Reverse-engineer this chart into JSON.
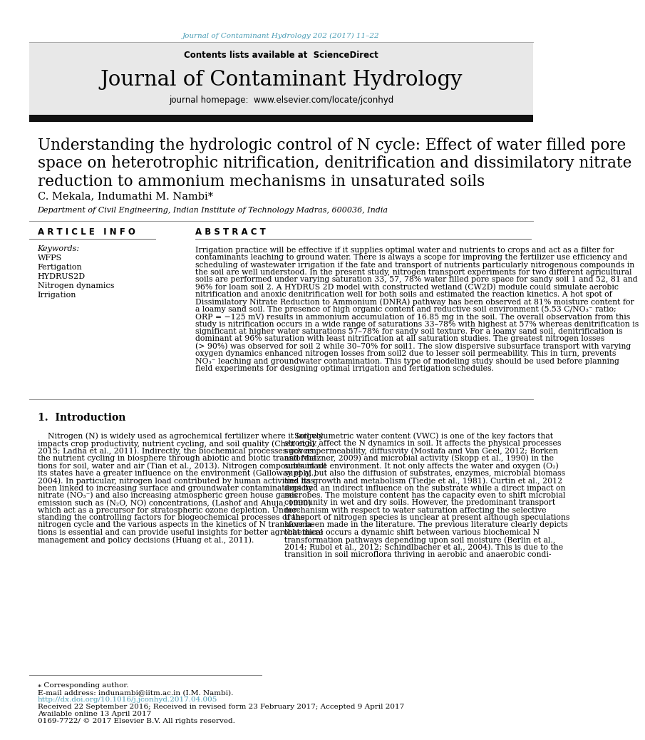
{
  "journal_ref": "Journal of Contaminant Hydrology 202 (2017) 11–22",
  "journal_ref_color": "#4a9db5",
  "journal_title": "Journal of Contaminant Hydrology",
  "journal_homepage_url": "www.elsevier.com/locate/jconhyd",
  "journal_homepage_color": "#4a9db5",
  "paper_title_lines": [
    "Understanding the hydrologic control of N cycle: Effect of water filled pore",
    "space on heterotrophic nitrification, denitrification and dissimilatory nitrate",
    "reduction to ammonium mechanisms in unsaturated soils"
  ],
  "authors": "C. Mekala, Indumathi M. Nambi*",
  "affiliation": "Department of Civil Engineering, Indian Institute of Technology Madras, 600036, India",
  "article_info_header": "A R T I C L E   I N F O",
  "abstract_header": "A B S T R A C T",
  "keywords_label": "Keywords:",
  "keywords": [
    "WFPS",
    "Fertigation",
    "HYDRUS2D",
    "Nitrogen dynamics",
    "Irrigation"
  ],
  "abstract_lines": [
    "Irrigation practice will be effective if it supplies optimal water and nutrients to crops and act as a filter for",
    "contaminants leaching to ground water. There is always a scope for improving the fertilizer use efficiency and",
    "scheduling of wastewater irrigation if the fate and transport of nutrients particularly nitrogenous compounds in",
    "the soil are well understood. In the present study, nitrogen transport experiments for two different agricultural",
    "soils are performed under varying saturation 33, 57, 78% water filled pore space for sandy soil 1 and 52, 81 and",
    "96% for loam soil 2. A HYDRUS 2D model with constructed wetland (CW2D) module could simulate aerobic",
    "nitrification and anoxic denitrification well for both soils and estimated the reaction kinetics. A hot spot of",
    "Dissimilatory Nitrate Reduction to Ammonium (DNRA) pathway has been observed at 81% moisture content for",
    "a loamy sand soil. The presence of high organic content and reductive soil environment (5.53 C/NO₃⁻ ratio;",
    "ORP = −125 mV) results in ammonium accumulation of 16.85 mg in the soil. The overall observation from this",
    "study is nitrification occurs in a wide range of saturations 33–78% with highest at 57% whereas denitrification is",
    "significant at higher water saturations 57–78% for sandy soil texture. For a loamy sand soil, denitrification is",
    "dominant at 96% saturation with least nitrification at all saturation studies. The greatest nitrogen losses",
    "(> 90%) was observed for soil 2 while 30–70% for soil1. The slow dispersive subsurface transport with varying",
    "oxygen dynamics enhanced nitrogen losses from soil2 due to lesser soil permeability. This in turn, prevents",
    "NO₃⁻ leaching and groundwater contamination. This type of modeling study should be used before planning",
    "field experiments for designing optimal irrigation and fertigation schedules."
  ],
  "intro_header": "1.  Introduction",
  "intro_left_lines": [
    "    Nitrogen (N) is widely used as agrochemical fertilizer where it largely",
    "impacts crop productivity, nutrient cycling, and soil quality (Chen et al.,",
    "2015; Ladha et al., 2011). Indirectly, the biochemical processes govern",
    "the nutrient cycling in biosphere through abiotic and biotic transforma-",
    "tions for soil, water and air (Tian et al., 2013). Nitrogen compounds in all",
    "its states have a greater influence on the environment (Galloway et al.,",
    "2004). In particular, nitrogen load contributed by human activities has",
    "been linked to increasing surface and groundwater contaminations by",
    "nitrate (NO₃⁻) and also increasing atmospheric green house gases",
    "emission such as (N₂O, NO) concentrations, (Lashof and Ahuja, 1990)",
    "which act as a precursor for stratospheric ozone depletion. Under-",
    "standing the controlling factors for biogeochemical processes of the",
    "nitrogen cycle and the various aspects in the kinetics of N transforma-",
    "tions is essential and can provide useful insights for better agrochemical",
    "management and policy decisions (Huang et al., 2011)."
  ],
  "intro_right_lines": [
    "    Soil volumetric water content (VWC) is one of the key factors that",
    "strongly affect the N dynamics in soil. It affects the physical processes",
    "such as permeability, diffusivity (Mostafa and Van Geel, 2012; Borken",
    "and Matzner, 2009) and microbial activity (Skopp et al., 1990) in the",
    "subsurface environment. It not only affects the water and oxygen (O₂)",
    "supply, but also the diffusion of substrates, enzymes, microbial biomass",
    "and its growth and metabolism (Tiedje et al., 1981). Curtin et al., 2012",
    "depicted an indirect influence on the substrate while a direct impact on",
    "microbes. The moisture content has the capacity even to shift microbial",
    "community in wet and dry soils. However, the predominant transport",
    "mechanism with respect to water saturation affecting the selective",
    "transport of nitrogen species is unclear at present although speculations",
    "have been made in the literature. The previous literature clearly depicts",
    "that there occurs a dynamic shift between various biochemical N",
    "transformation pathways depending upon soil moisture (Berlin et al.,",
    "2014; Rubol et al., 2012; Schindlbacher et al., 2004). This is due to the",
    "transition in soil microflora thriving in aerobic and anaerobic condi-"
  ],
  "footer_lines": [
    {
      "text": "⁎ Corresponding author.",
      "color": "#000000",
      "size": 7.5
    },
    {
      "text": "E-mail address: indunambi@iitm.ac.in (I.M. Nambi).",
      "color": "#000000",
      "size": 7.5
    },
    {
      "text": "http://dx.doi.org/10.1016/j.jconhyd.2017.04.005",
      "color": "#4a9db5",
      "size": 7.5
    },
    {
      "text": "Received 22 September 2016; Received in revised form 23 February 2017; Accepted 9 April 2017",
      "color": "#000000",
      "size": 7.5
    },
    {
      "text": "Available online 13 April 2017",
      "color": "#000000",
      "size": 7.5
    },
    {
      "text": "0169-7722/ © 2017 Elsevier B.V. All rights reserved.",
      "color": "#000000",
      "size": 7.5
    }
  ],
  "link_color": "#4a9db5",
  "header_bg": "#e8e8e8",
  "black_bar_color": "#111111",
  "background_color": "#ffffff"
}
